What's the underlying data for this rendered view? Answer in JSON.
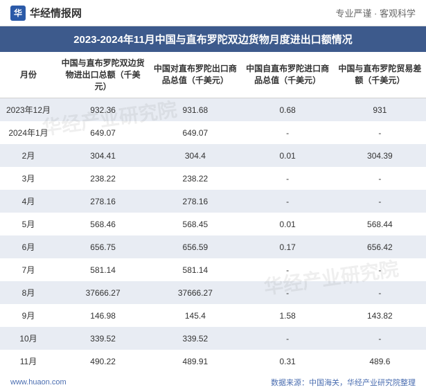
{
  "header": {
    "logo_text": "华经情报网",
    "logo_char": "华",
    "tagline": "专业严谨 · 客观科学"
  },
  "title": "2023-2024年11月中国与直布罗陀双边货物月度进出口额情况",
  "table": {
    "columns": [
      "月份",
      "中国与直布罗陀双边货物进出口总额（千美元）",
      "中国对直布罗陀出口商品总值（千美元）",
      "中国自直布罗陀进口商品总值（千美元）",
      "中国与直布罗陀贸易差额（千美元）"
    ],
    "rows": [
      [
        "2023年12月",
        "932.36",
        "931.68",
        "0.68",
        "931"
      ],
      [
        "2024年1月",
        "649.07",
        "649.07",
        "-",
        "-"
      ],
      [
        "2月",
        "304.41",
        "304.4",
        "0.01",
        "304.39"
      ],
      [
        "3月",
        "238.22",
        "238.22",
        "-",
        "-"
      ],
      [
        "4月",
        "278.16",
        "278.16",
        "-",
        "-"
      ],
      [
        "5月",
        "568.46",
        "568.45",
        "0.01",
        "568.44"
      ],
      [
        "6月",
        "656.75",
        "656.59",
        "0.17",
        "656.42"
      ],
      [
        "7月",
        "581.14",
        "581.14",
        "-",
        "-"
      ],
      [
        "8月",
        "37666.27",
        "37666.27",
        "-",
        "-"
      ],
      [
        "9月",
        "146.98",
        "145.4",
        "1.58",
        "143.82"
      ],
      [
        "10月",
        "339.52",
        "339.52",
        "-",
        "-"
      ],
      [
        "11月",
        "490.22",
        "489.91",
        "0.31",
        "489.6"
      ]
    ]
  },
  "footer": {
    "url": "www.huaon.com",
    "source": "数据来源：中国海关，华经产业研究院整理"
  },
  "watermark": "华经产业研究院",
  "styling": {
    "title_bg": "#3d5a8c",
    "title_color": "#ffffff",
    "odd_row_bg": "#e8ecf3",
    "even_row_bg": "#ffffff",
    "footer_color": "#4a6db0",
    "border_color": "#d0d0d0"
  }
}
